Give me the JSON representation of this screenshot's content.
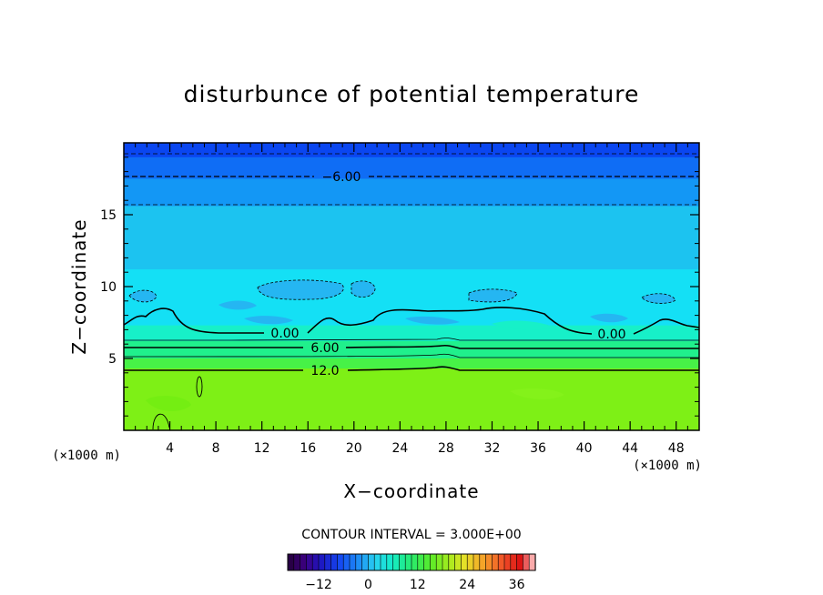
{
  "chart_data": {
    "type": "heatmap",
    "title": "disturbunce of potential temperature",
    "xlabel": "X−coordinate",
    "ylabel": "Z−coordinate",
    "x_unit_left": "(×1000 m)",
    "x_unit_right": "(×1000 m)",
    "xlim": [
      0,
      50
    ],
    "ylim": [
      0,
      20
    ],
    "x_ticks": [
      4,
      8,
      12,
      16,
      20,
      24,
      28,
      32,
      36,
      40,
      44,
      48
    ],
    "y_ticks": [
      5,
      10,
      15
    ],
    "contour_labels": [
      "−6.00",
      "0.00",
      "0.00",
      "6.00",
      "12.0"
    ],
    "contour_interval_text": "CONTOUR INTERVAL = 3.000E+00",
    "colorbar": {
      "ticks": [
        "−12",
        "0",
        "12",
        "24",
        "36"
      ],
      "tick_values": [
        -12,
        0,
        12,
        24,
        36
      ],
      "range": [
        -19.5,
        40.5
      ]
    },
    "bands": [
      {
        "z_from": 19.0,
        "z_to": 20.0,
        "value": -12,
        "color": "#0a46f0"
      },
      {
        "z_from": 17.5,
        "z_to": 19.0,
        "value": -9,
        "color": "#0f6df5"
      },
      {
        "z_from": 15.6,
        "z_to": 17.5,
        "value": -6,
        "color": "#1397f5"
      },
      {
        "z_from": 11.2,
        "z_to": 15.6,
        "value": -3,
        "color": "#1cc3f0"
      },
      {
        "z_from": 7.3,
        "z_to": 11.2,
        "value": 0,
        "color": "#14e0f5"
      },
      {
        "z_from": 6.2,
        "z_to": 7.3,
        "value": 3,
        "color": "#17f0c8"
      },
      {
        "z_from": 5.0,
        "z_to": 6.2,
        "value": 6,
        "color": "#20f08c"
      },
      {
        "z_from": 4.3,
        "z_to": 5.0,
        "value": 9,
        "color": "#47f247"
      },
      {
        "z_from": 0.0,
        "z_to": 4.3,
        "value": 12,
        "color": "#7ef016"
      }
    ]
  }
}
